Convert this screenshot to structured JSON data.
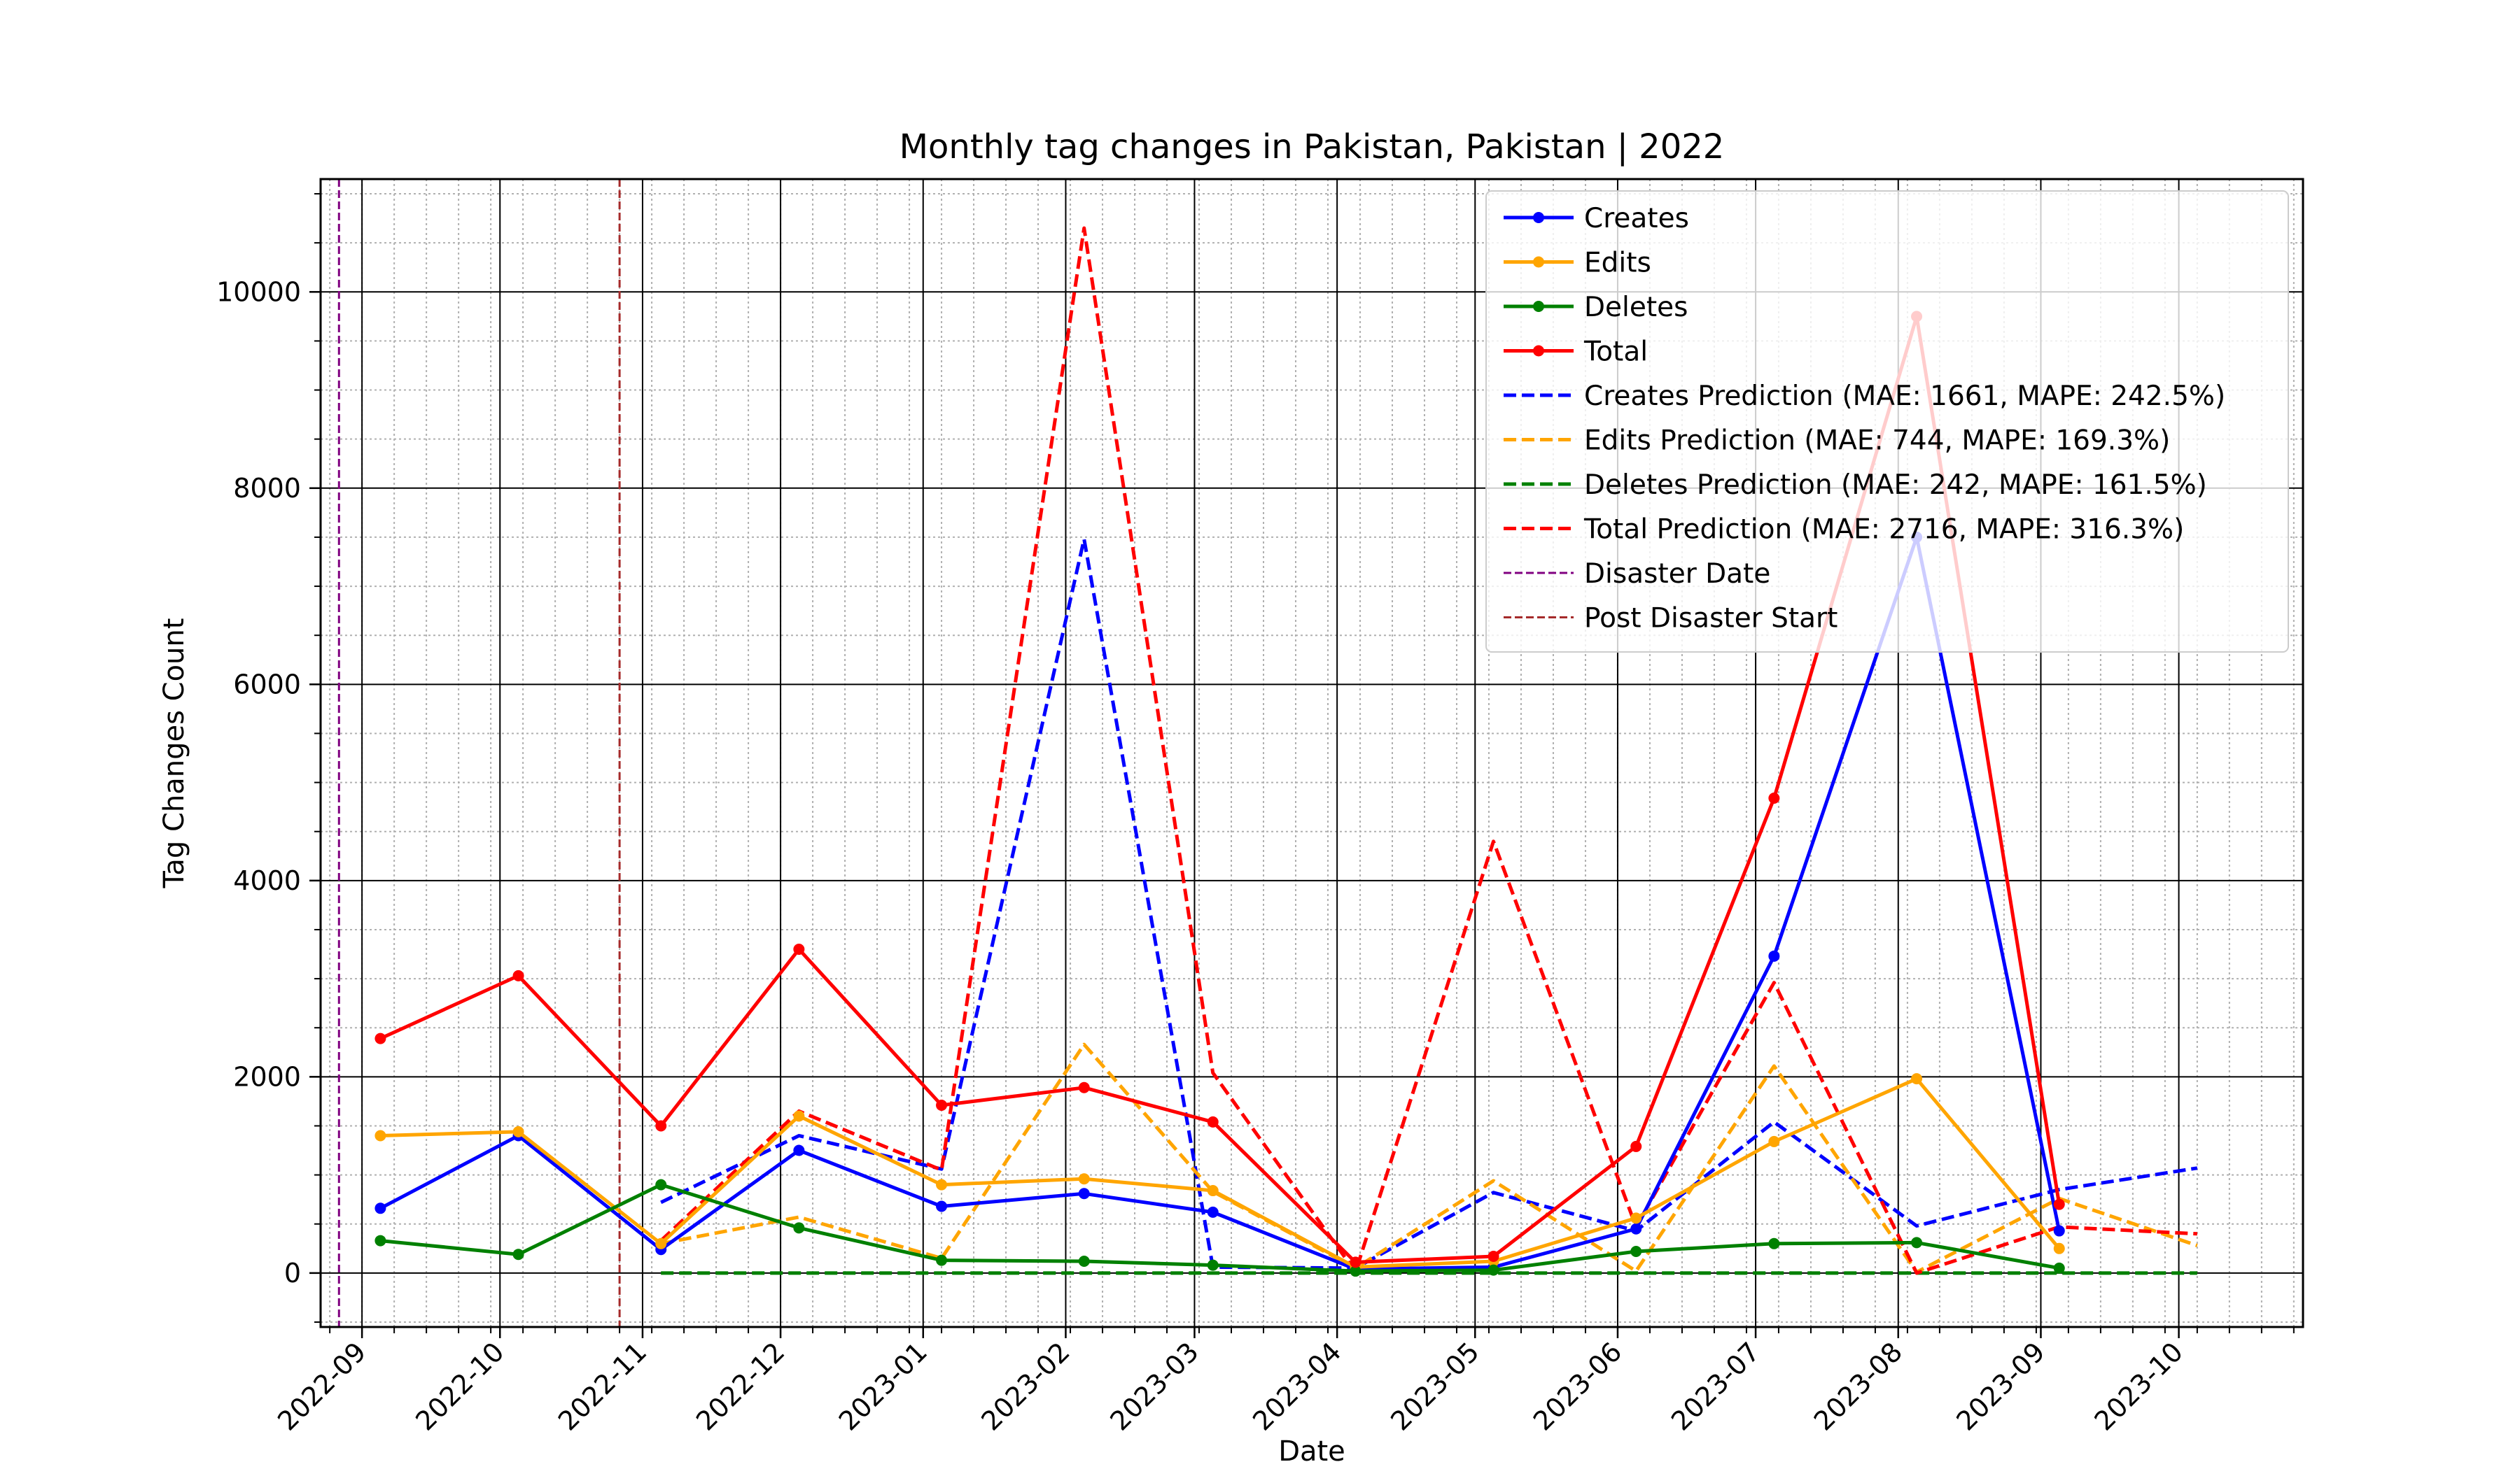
{
  "chart_data": {
    "type": "line",
    "title": "Monthly tag changes in Pakistan, Pakistan | 2022",
    "xlabel": "Date",
    "ylabel": "Tag Changes Count",
    "x_axis": {
      "start": "2022-08-23",
      "end": "2023-10-28",
      "ticks": [
        "2022-09-01",
        "2022-10-01",
        "2022-11-01",
        "2022-12-01",
        "2023-01-01",
        "2023-02-01",
        "2023-03-01",
        "2023-04-01",
        "2023-05-01",
        "2023-06-01",
        "2023-07-01",
        "2023-08-01",
        "2023-09-01",
        "2023-10-01"
      ],
      "tick_labels": [
        "2022-09",
        "2022-10",
        "2022-11",
        "2022-12",
        "2023-01",
        "2023-02",
        "2023-03",
        "2023-04",
        "2023-05",
        "2023-06",
        "2023-07",
        "2023-08",
        "2023-09",
        "2023-10"
      ]
    },
    "y_axis": {
      "ylim": [
        -550,
        11150
      ],
      "ticks": [
        0,
        2000,
        4000,
        6000,
        8000,
        10000
      ],
      "tick_labels": [
        "0",
        "2000",
        "4000",
        "6000",
        "8000",
        "10000"
      ]
    },
    "grid": true,
    "legend_position": "top-right",
    "series": [
      {
        "name": "Creates",
        "color": "#0000ff",
        "style": "solid",
        "markers": true,
        "points": [
          [
            "2022-09-05",
            660
          ],
          [
            "2022-10-05",
            1400
          ],
          [
            "2022-11-05",
            240
          ],
          [
            "2022-12-05",
            1250
          ],
          [
            "2023-01-05",
            680
          ],
          [
            "2023-02-05",
            810
          ],
          [
            "2023-03-05",
            620
          ],
          [
            "2023-04-05",
            40
          ],
          [
            "2023-05-05",
            60
          ],
          [
            "2023-06-05",
            450
          ],
          [
            "2023-07-05",
            3230
          ],
          [
            "2023-08-05",
            7500
          ],
          [
            "2023-09-05",
            430
          ]
        ]
      },
      {
        "name": "Edits",
        "color": "#ffa500",
        "style": "solid",
        "markers": true,
        "points": [
          [
            "2022-09-05",
            1400
          ],
          [
            "2022-10-05",
            1440
          ],
          [
            "2022-11-05",
            300
          ],
          [
            "2022-12-05",
            1600
          ],
          [
            "2023-01-05",
            900
          ],
          [
            "2023-02-05",
            960
          ],
          [
            "2023-03-05",
            840
          ],
          [
            "2023-04-05",
            60
          ],
          [
            "2023-05-05",
            120
          ],
          [
            "2023-06-05",
            560
          ],
          [
            "2023-07-05",
            1340
          ],
          [
            "2023-08-05",
            1980
          ],
          [
            "2023-09-05",
            250
          ]
        ]
      },
      {
        "name": "Deletes",
        "color": "#008000",
        "style": "solid",
        "markers": true,
        "points": [
          [
            "2022-09-05",
            330
          ],
          [
            "2022-10-05",
            190
          ],
          [
            "2022-11-05",
            900
          ],
          [
            "2022-12-05",
            460
          ],
          [
            "2023-01-05",
            130
          ],
          [
            "2023-02-05",
            120
          ],
          [
            "2023-03-05",
            80
          ],
          [
            "2023-04-05",
            20
          ],
          [
            "2023-05-05",
            30
          ],
          [
            "2023-06-05",
            220
          ],
          [
            "2023-07-05",
            300
          ],
          [
            "2023-08-05",
            310
          ],
          [
            "2023-09-05",
            50
          ]
        ]
      },
      {
        "name": "Total",
        "color": "#ff0000",
        "style": "solid",
        "markers": true,
        "points": [
          [
            "2022-09-05",
            2390
          ],
          [
            "2022-10-05",
            3030
          ],
          [
            "2022-11-05",
            1500
          ],
          [
            "2022-12-05",
            3300
          ],
          [
            "2023-01-05",
            1710
          ],
          [
            "2023-02-05",
            1890
          ],
          [
            "2023-03-05",
            1540
          ],
          [
            "2023-04-05",
            110
          ],
          [
            "2023-05-05",
            170
          ],
          [
            "2023-06-05",
            1290
          ],
          [
            "2023-07-05",
            4840
          ],
          [
            "2023-08-05",
            9750
          ],
          [
            "2023-09-05",
            700
          ]
        ]
      },
      {
        "name": "Creates Prediction (MAE: 1661, MAPE: 242.5%)",
        "color": "#0000ff",
        "style": "dashed",
        "markers": false,
        "points": [
          [
            "2022-11-05",
            720
          ],
          [
            "2022-12-05",
            1400
          ],
          [
            "2023-01-05",
            1060
          ],
          [
            "2023-02-05",
            7480
          ],
          [
            "2023-03-05",
            60
          ],
          [
            "2023-04-05",
            50
          ],
          [
            "2023-05-05",
            820
          ],
          [
            "2023-06-05",
            430
          ],
          [
            "2023-07-05",
            1540
          ],
          [
            "2023-08-05",
            480
          ],
          [
            "2023-09-05",
            850
          ],
          [
            "2023-10-05",
            1070
          ]
        ]
      },
      {
        "name": "Edits Prediction (MAE: 744, MAPE: 169.3%)",
        "color": "#ffa500",
        "style": "dashed",
        "markers": false,
        "points": [
          [
            "2022-11-05",
            300
          ],
          [
            "2022-12-05",
            570
          ],
          [
            "2023-01-05",
            150
          ],
          [
            "2023-02-05",
            2330
          ],
          [
            "2023-03-05",
            830
          ],
          [
            "2023-04-05",
            50
          ],
          [
            "2023-05-05",
            940
          ],
          [
            "2023-06-05",
            20
          ],
          [
            "2023-07-05",
            2110
          ],
          [
            "2023-08-05",
            10
          ],
          [
            "2023-09-05",
            760
          ],
          [
            "2023-10-05",
            280
          ]
        ]
      },
      {
        "name": "Deletes Prediction (MAE: 242, MAPE: 161.5%)",
        "color": "#008000",
        "style": "dashed",
        "markers": false,
        "points": [
          [
            "2022-11-05",
            0
          ],
          [
            "2022-12-05",
            0
          ],
          [
            "2023-01-05",
            0
          ],
          [
            "2023-02-05",
            0
          ],
          [
            "2023-03-05",
            0
          ],
          [
            "2023-04-05",
            0
          ],
          [
            "2023-05-05",
            0
          ],
          [
            "2023-06-05",
            0
          ],
          [
            "2023-07-05",
            0
          ],
          [
            "2023-08-05",
            0
          ],
          [
            "2023-09-05",
            0
          ],
          [
            "2023-10-05",
            0
          ]
        ]
      },
      {
        "name": "Total Prediction (MAE: 2716, MAPE: 316.3%)",
        "color": "#ff0000",
        "style": "dashed",
        "markers": false,
        "points": [
          [
            "2022-11-05",
            330
          ],
          [
            "2022-12-05",
            1650
          ],
          [
            "2023-01-05",
            1050
          ],
          [
            "2023-02-05",
            10650
          ],
          [
            "2023-03-05",
            2040
          ],
          [
            "2023-04-05",
            10
          ],
          [
            "2023-05-05",
            4400
          ],
          [
            "2023-06-05",
            470
          ],
          [
            "2023-07-05",
            2960
          ],
          [
            "2023-08-05",
            0
          ],
          [
            "2023-09-05",
            470
          ],
          [
            "2023-10-05",
            400
          ]
        ]
      }
    ],
    "vertical_lines": [
      {
        "name": "Disaster Date",
        "color": "#800080",
        "x": "2022-08-27"
      },
      {
        "name": "Post Disaster Start",
        "color": "#a52a2a",
        "x": "2022-10-27"
      }
    ]
  }
}
